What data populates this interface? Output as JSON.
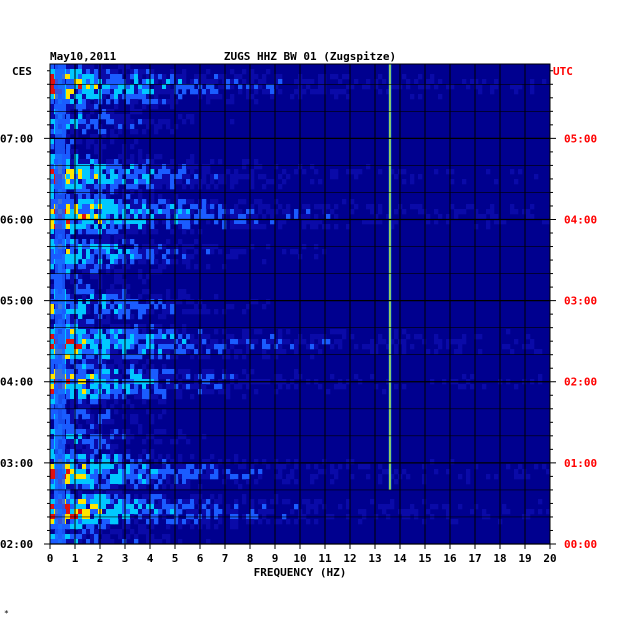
{
  "header": {
    "date": "May10,2011",
    "station": "ZUGS HHZ BW 01 (Zugspitze)"
  },
  "chart_data": {
    "type": "heatmap",
    "title": "ZUGS HHZ BW 01 (Zugspitze)",
    "date": "May10,2011",
    "xlabel": "FREQUENCY (HZ)",
    "left_axis_label": "CES",
    "right_axis_label": "UTC",
    "xlim": [
      0,
      20
    ],
    "x_ticks": [
      "0",
      "1",
      "2",
      "3",
      "4",
      "5",
      "6",
      "7",
      "8",
      "9",
      "10",
      "11",
      "12",
      "13",
      "14",
      "15",
      "16",
      "17",
      "18",
      "19",
      "20"
    ],
    "left_ticks": [
      "07:00",
      "06:00",
      "05:00",
      "04:00",
      "03:00",
      "02:00"
    ],
    "right_ticks": [
      "05:00",
      "04:00",
      "03:00",
      "02:00",
      "01:00",
      "00:00"
    ],
    "time_range_local": [
      "02:00",
      "07:55"
    ],
    "grid": true,
    "colors": {
      "background": "#00008f",
      "low": "#0a0aa8",
      "mid": "#1a5cff",
      "high": "#00c8ff",
      "peak": "#ffe600",
      "max": "#e01010",
      "utc_label": "#ff0000",
      "text": "#000000"
    },
    "features": [
      {
        "frequency_hz": 13.6,
        "time_local": [
          "02:40",
          "07:55"
        ],
        "description": "narrow persistent spectral line"
      },
      {
        "frequency_hz": 0.4,
        "time_local": [
          "02:00",
          "07:55"
        ],
        "description": "strong low-frequency microseism energy"
      }
    ]
  },
  "footer_mark": "*"
}
